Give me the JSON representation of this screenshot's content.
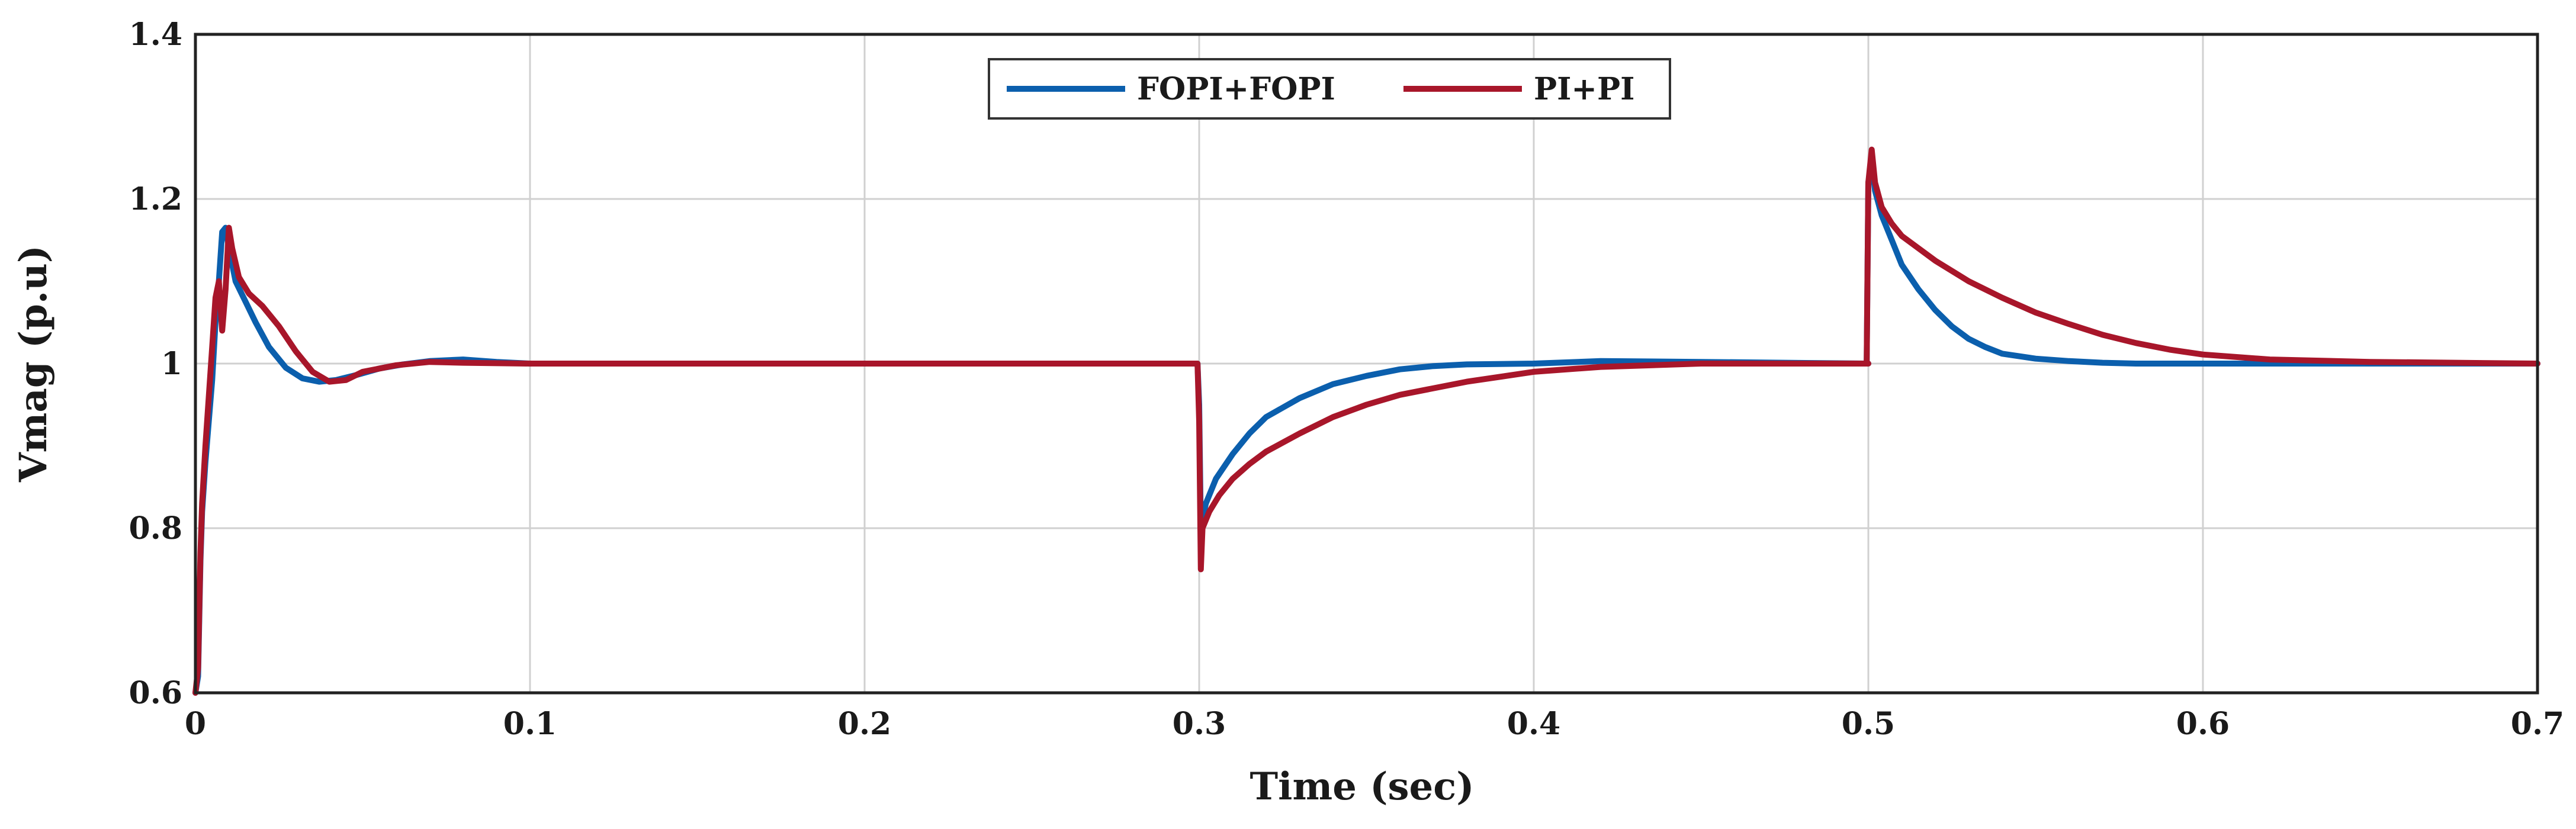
{
  "chart_data": {
    "type": "line",
    "title": "",
    "xlabel": "Time (sec)",
    "ylabel": "Vmag (p.u)",
    "xlim": [
      0,
      0.7
    ],
    "ylim": [
      0.6,
      1.4
    ],
    "xticks": [
      0,
      0.1,
      0.2,
      0.3,
      0.4,
      0.5,
      0.6,
      0.7
    ],
    "xtick_labels": [
      "0",
      "0.1",
      "0.2",
      "0.3",
      "0.4",
      "0.5",
      "0.6",
      "0.7"
    ],
    "yticks": [
      0.6,
      0.8,
      1.0,
      1.2,
      1.4
    ],
    "ytick_labels": [
      "0.6",
      "0.8",
      "1",
      "1.2",
      "1.4"
    ],
    "grid": true,
    "legend_position": "top-center",
    "series": [
      {
        "name": "FOPI+FOPI",
        "color": "#0b5fad",
        "x": [
          0,
          0.0008,
          0.0015,
          0.002,
          0.003,
          0.004,
          0.005,
          0.006,
          0.007,
          0.008,
          0.009,
          0.01,
          0.012,
          0.015,
          0.018,
          0.022,
          0.027,
          0.032,
          0.037,
          0.042,
          0.048,
          0.055,
          0.062,
          0.07,
          0.08,
          0.09,
          0.1,
          0.15,
          0.2,
          0.25,
          0.2995,
          0.3,
          0.3005,
          0.302,
          0.305,
          0.31,
          0.315,
          0.32,
          0.33,
          0.34,
          0.35,
          0.36,
          0.37,
          0.38,
          0.4,
          0.42,
          0.45,
          0.5,
          0.4995,
          0.5,
          0.501,
          0.502,
          0.504,
          0.507,
          0.51,
          0.515,
          0.52,
          0.525,
          0.53,
          0.535,
          0.54,
          0.55,
          0.56,
          0.57,
          0.58,
          0.6,
          0.62,
          0.65,
          0.7
        ],
        "values": [
          0.6,
          0.62,
          0.76,
          0.82,
          0.88,
          0.93,
          0.98,
          1.05,
          1.1,
          1.16,
          1.165,
          1.14,
          1.1,
          1.075,
          1.05,
          1.02,
          0.995,
          0.982,
          0.978,
          0.98,
          0.986,
          0.994,
          0.999,
          1.003,
          1.005,
          1.002,
          1.0,
          1.0,
          1.0,
          1.0,
          1.0,
          0.95,
          0.8,
          0.83,
          0.86,
          0.89,
          0.915,
          0.935,
          0.958,
          0.975,
          0.985,
          0.993,
          0.997,
          0.999,
          1.0,
          1.003,
          1.002,
          1.0,
          1.0,
          1.22,
          1.245,
          1.21,
          1.18,
          1.15,
          1.12,
          1.09,
          1.065,
          1.045,
          1.03,
          1.02,
          1.012,
          1.006,
          1.003,
          1.001,
          1.0,
          1.0,
          1.0,
          1.0,
          1.0
        ]
      },
      {
        "name": "PI+PI",
        "color": "#a8162a",
        "x": [
          0,
          0.0008,
          0.0015,
          0.002,
          0.003,
          0.004,
          0.005,
          0.006,
          0.007,
          0.008,
          0.009,
          0.01,
          0.011,
          0.013,
          0.016,
          0.02,
          0.025,
          0.03,
          0.035,
          0.04,
          0.045,
          0.05,
          0.06,
          0.07,
          0.08,
          0.1,
          0.15,
          0.2,
          0.25,
          0.2995,
          0.3,
          0.3005,
          0.301,
          0.303,
          0.306,
          0.31,
          0.315,
          0.32,
          0.33,
          0.34,
          0.35,
          0.36,
          0.38,
          0.4,
          0.42,
          0.45,
          0.5,
          0.4995,
          0.5,
          0.501,
          0.502,
          0.504,
          0.507,
          0.51,
          0.515,
          0.52,
          0.53,
          0.54,
          0.55,
          0.56,
          0.57,
          0.58,
          0.59,
          0.6,
          0.62,
          0.65,
          0.7
        ],
        "values": [
          0.6,
          0.63,
          0.77,
          0.83,
          0.9,
          0.96,
          1.02,
          1.08,
          1.1,
          1.04,
          1.09,
          1.165,
          1.14,
          1.105,
          1.085,
          1.07,
          1.045,
          1.015,
          0.99,
          0.978,
          0.98,
          0.99,
          0.998,
          1.002,
          1.001,
          1.0,
          1.0,
          1.0,
          1.0,
          1.0,
          0.93,
          0.75,
          0.8,
          0.82,
          0.84,
          0.86,
          0.878,
          0.893,
          0.915,
          0.935,
          0.95,
          0.962,
          0.978,
          0.99,
          0.996,
          1.0,
          1.0,
          1.0,
          1.22,
          1.26,
          1.22,
          1.19,
          1.17,
          1.155,
          1.14,
          1.125,
          1.1,
          1.08,
          1.062,
          1.048,
          1.035,
          1.025,
          1.017,
          1.011,
          1.005,
          1.002,
          1.0
        ]
      }
    ]
  }
}
